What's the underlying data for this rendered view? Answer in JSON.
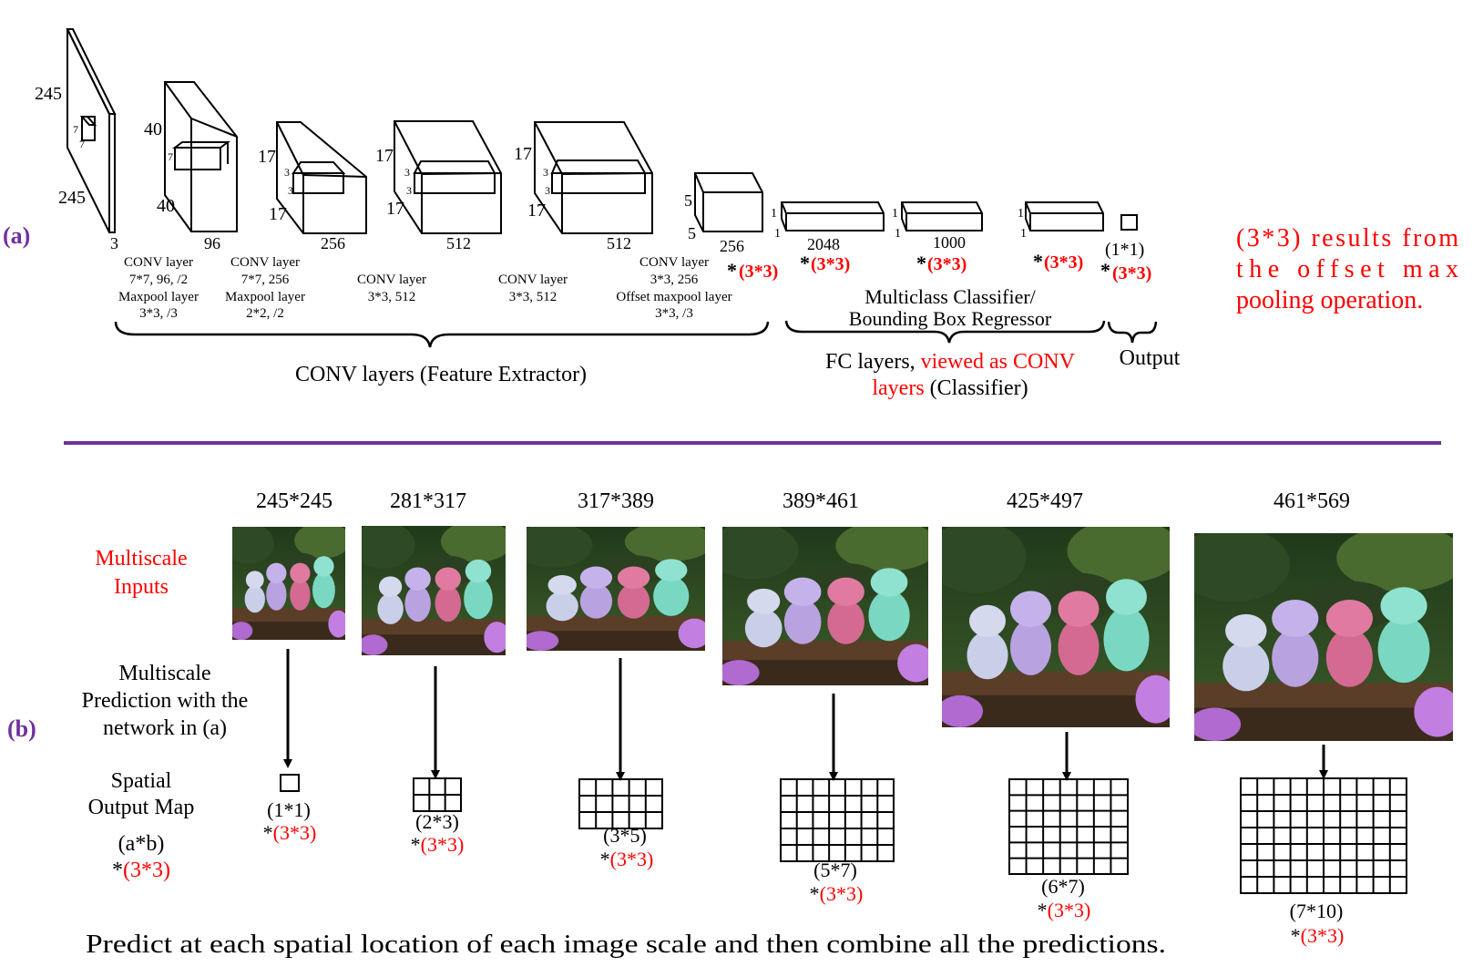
{
  "part_a": {
    "label": "(a)",
    "layers": [
      {
        "dims": [
          "245",
          "7",
          "7",
          "245",
          "3"
        ]
      },
      {
        "dims": [
          "40",
          "7",
          "40",
          "96"
        ],
        "caption": [
          "CONV layer",
          "7*7, 96, /2",
          "Maxpool layer",
          "3*3, /3"
        ]
      },
      {
        "dims": [
          "17",
          "3",
          "3",
          "17",
          "256"
        ],
        "caption": [
          "CONV layer",
          "7*7, 256",
          "Maxpool layer",
          "2*2, /2"
        ]
      },
      {
        "dims": [
          "17",
          "3",
          "3",
          "17",
          "512"
        ],
        "caption": [
          "CONV layer",
          "3*3, 512"
        ]
      },
      {
        "dims": [
          "17",
          "3",
          "3",
          "17",
          "512"
        ],
        "caption": [
          "CONV layer",
          "3*3, 512"
        ]
      },
      {
        "dims": [
          "5",
          "5",
          "256"
        ],
        "caption": [
          "CONV layer",
          "3*3, 256",
          "Offset maxpool layer",
          "3*3, /3"
        ],
        "mult": "(3*3)"
      },
      {
        "dims": [
          "1",
          "1",
          "2048"
        ],
        "mult": "(3*3)"
      },
      {
        "dims": [
          "1",
          "1",
          "1000"
        ],
        "mult": "(3*3)"
      },
      {
        "dims": [
          "1",
          "1"
        ],
        "mult": "(3*3)"
      },
      {
        "dims": [
          "(1*1)"
        ],
        "mult": "(3*3)"
      }
    ],
    "star": "*",
    "classifier_label": [
      "Multiclass Classifier/",
      "Bounding Box Regressor"
    ],
    "conv_group_label": "CONV layers (Feature Extractor)",
    "fc_label_1": "FC layers, ",
    "fc_label_red": "viewed as CONV",
    "fc_label_2_red": "layers",
    "fc_label_2": " (Classifier)",
    "output_label": "Output",
    "note": [
      "(3*3) results from",
      "the offset max",
      "pooling operation."
    ]
  },
  "part_b": {
    "label": "(b)",
    "row_labels": {
      "inputs": [
        "Multiscale",
        "Inputs"
      ],
      "prediction": [
        "Multiscale",
        "Prediction with the",
        "network in (a)"
      ],
      "output_map": [
        "Spatial",
        "Output Map"
      ],
      "ab": "(a*b)",
      "ab_mult": "(3*3)"
    },
    "scales": [
      {
        "size": "245*245",
        "map": "(1*1)",
        "mult": "(3*3)",
        "rows": 1,
        "cols": 1
      },
      {
        "size": "281*317",
        "map": "(2*3)",
        "mult": "(3*3)",
        "rows": 2,
        "cols": 3
      },
      {
        "size": "317*389",
        "map": "(3*5)",
        "mult": "(3*3)",
        "rows": 3,
        "cols": 5
      },
      {
        "size": "389*461",
        "map": "(5*7)",
        "mult": "(3*3)",
        "rows": 5,
        "cols": 7
      },
      {
        "size": "425*497",
        "map": "(6*7)",
        "mult": "(3*3)",
        "rows": 6,
        "cols": 7
      },
      {
        "size": "461*569",
        "map": "(7*10)",
        "mult": "(3*3)",
        "rows": 7,
        "cols": 10
      }
    ],
    "footer": "Predict at each spatial location of each image scale and then combine all the predictions."
  },
  "colors": {
    "red": "#ff0000",
    "purple": "#7030a0",
    "divider": "#7030a0"
  }
}
